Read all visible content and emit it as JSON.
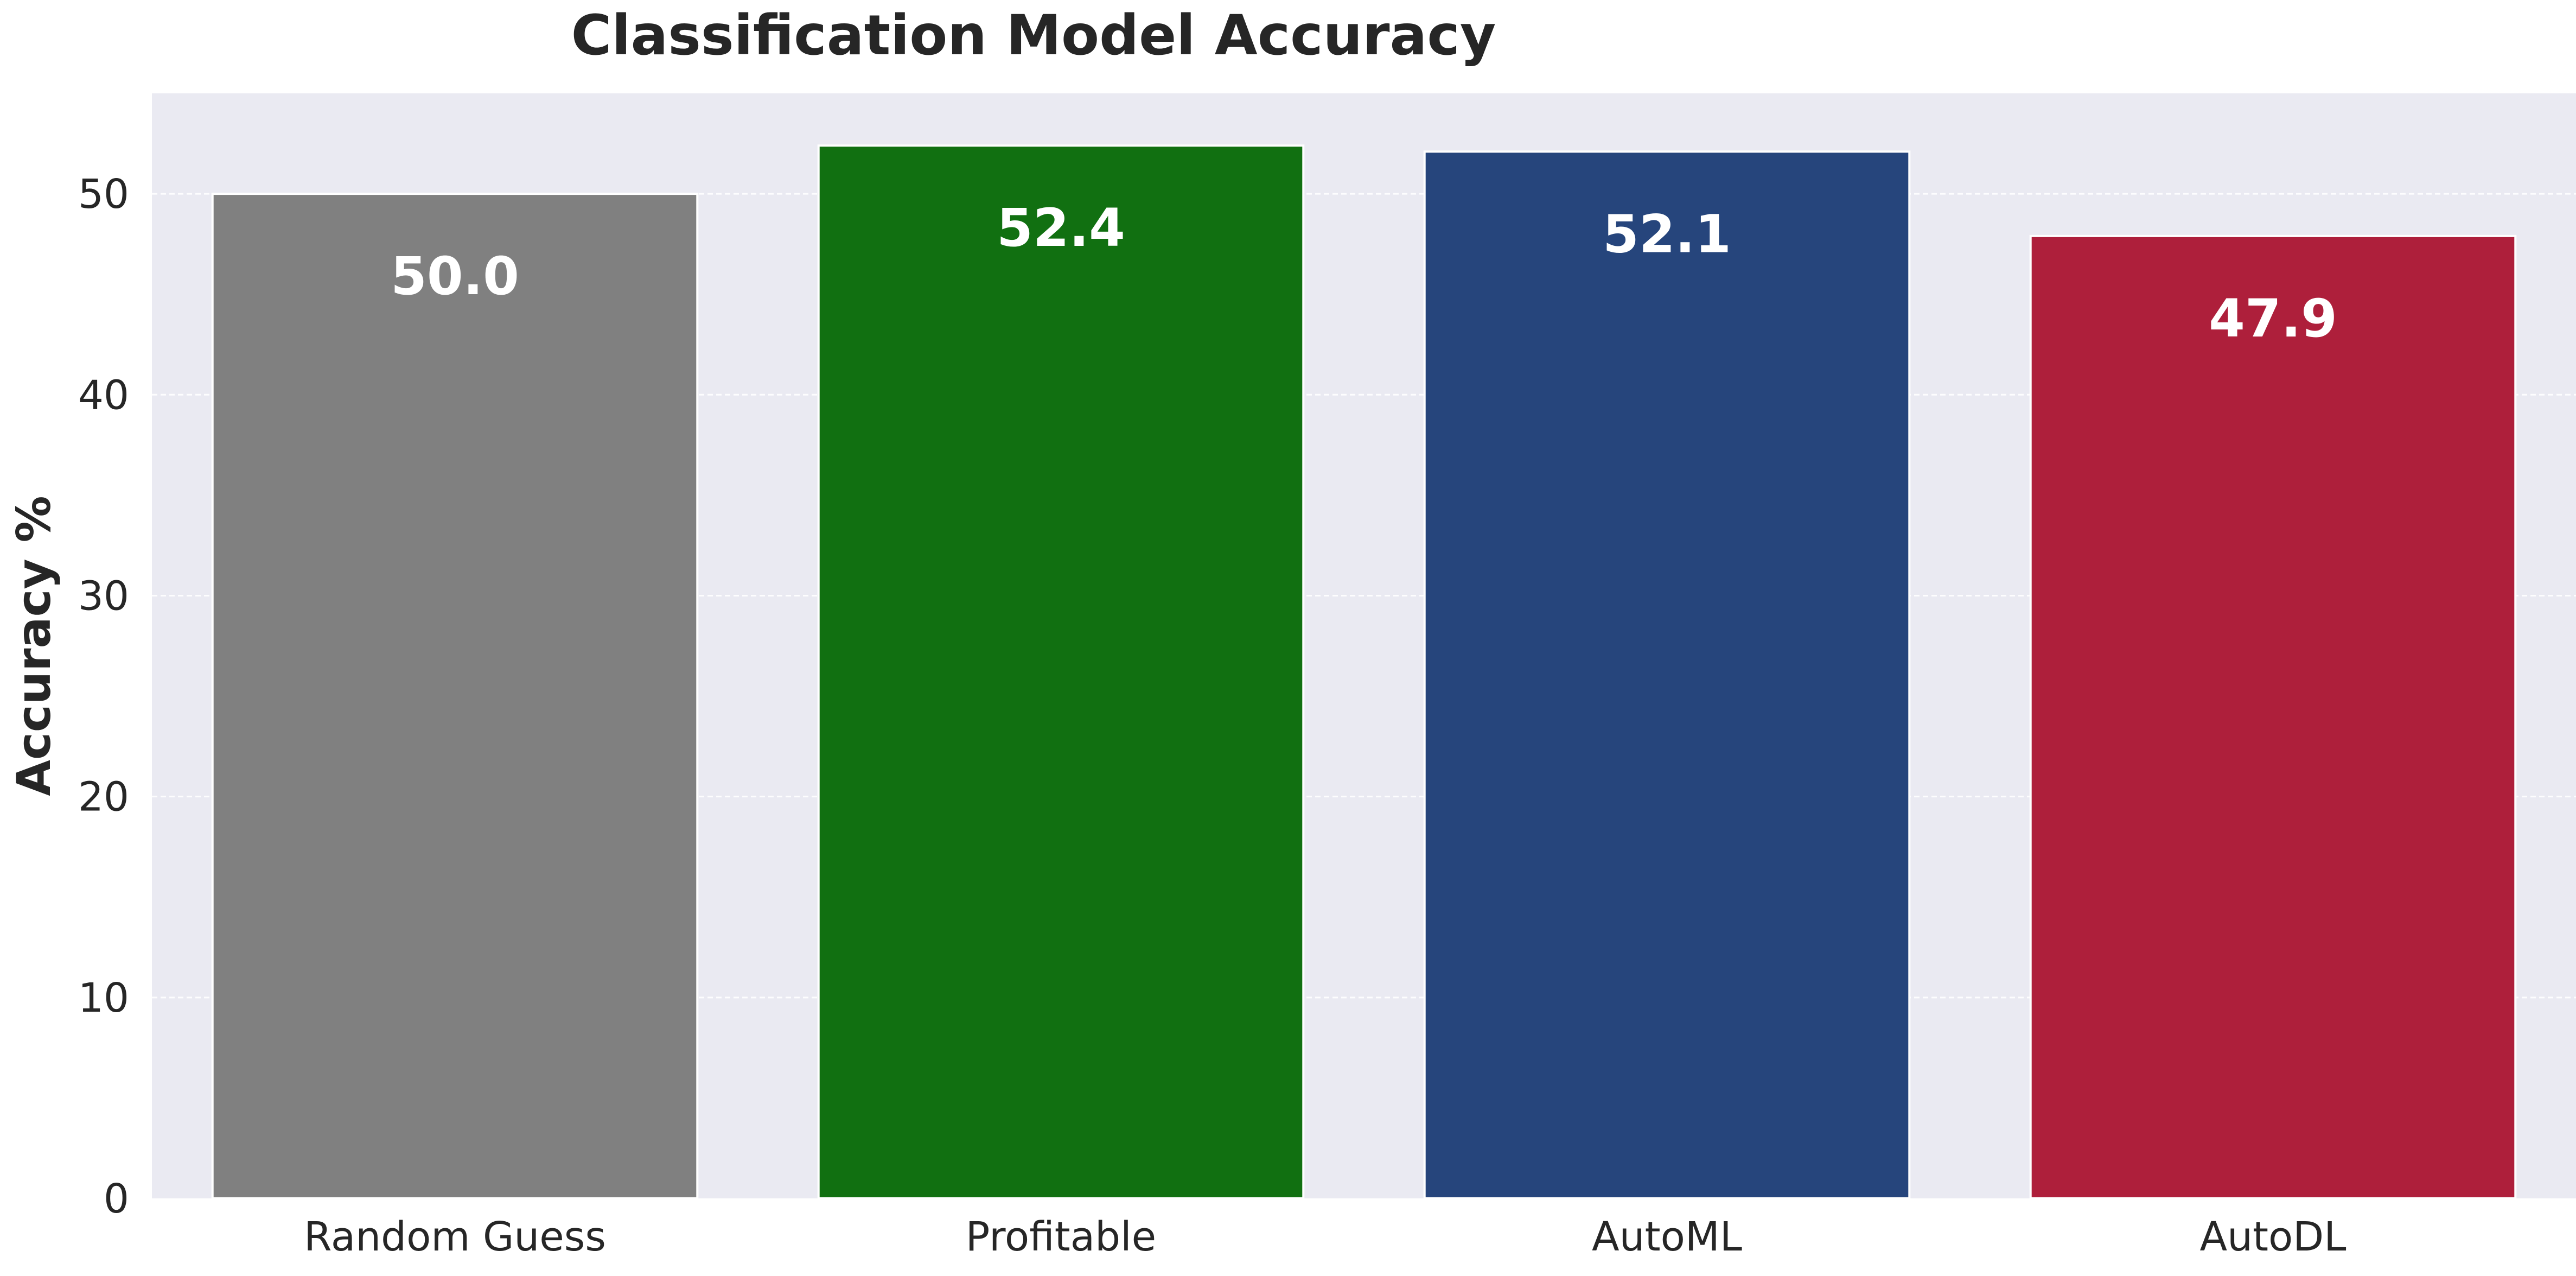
{
  "chart_data": {
    "type": "bar",
    "title": "Classification Model Accuracy",
    "xlabel": "",
    "ylabel": "Accuracy %",
    "categories": [
      "Random Guess",
      "Profitable",
      "AutoML",
      "AutoDL"
    ],
    "values": [
      50.0,
      52.4,
      52.1,
      47.9
    ],
    "data_labels": [
      "50.0",
      "52.4",
      "52.1",
      "47.9"
    ],
    "colors": [
      "#808080",
      "#117011",
      "#26457C",
      "#AE1F3B"
    ],
    "ylim": [
      0,
      55
    ],
    "yticks": [
      0,
      10,
      20,
      30,
      40,
      50
    ],
    "ytick_labels": [
      "0",
      "10",
      "20",
      "30",
      "40",
      "50"
    ],
    "grid": true,
    "background_color": "#EAEAF2"
  }
}
